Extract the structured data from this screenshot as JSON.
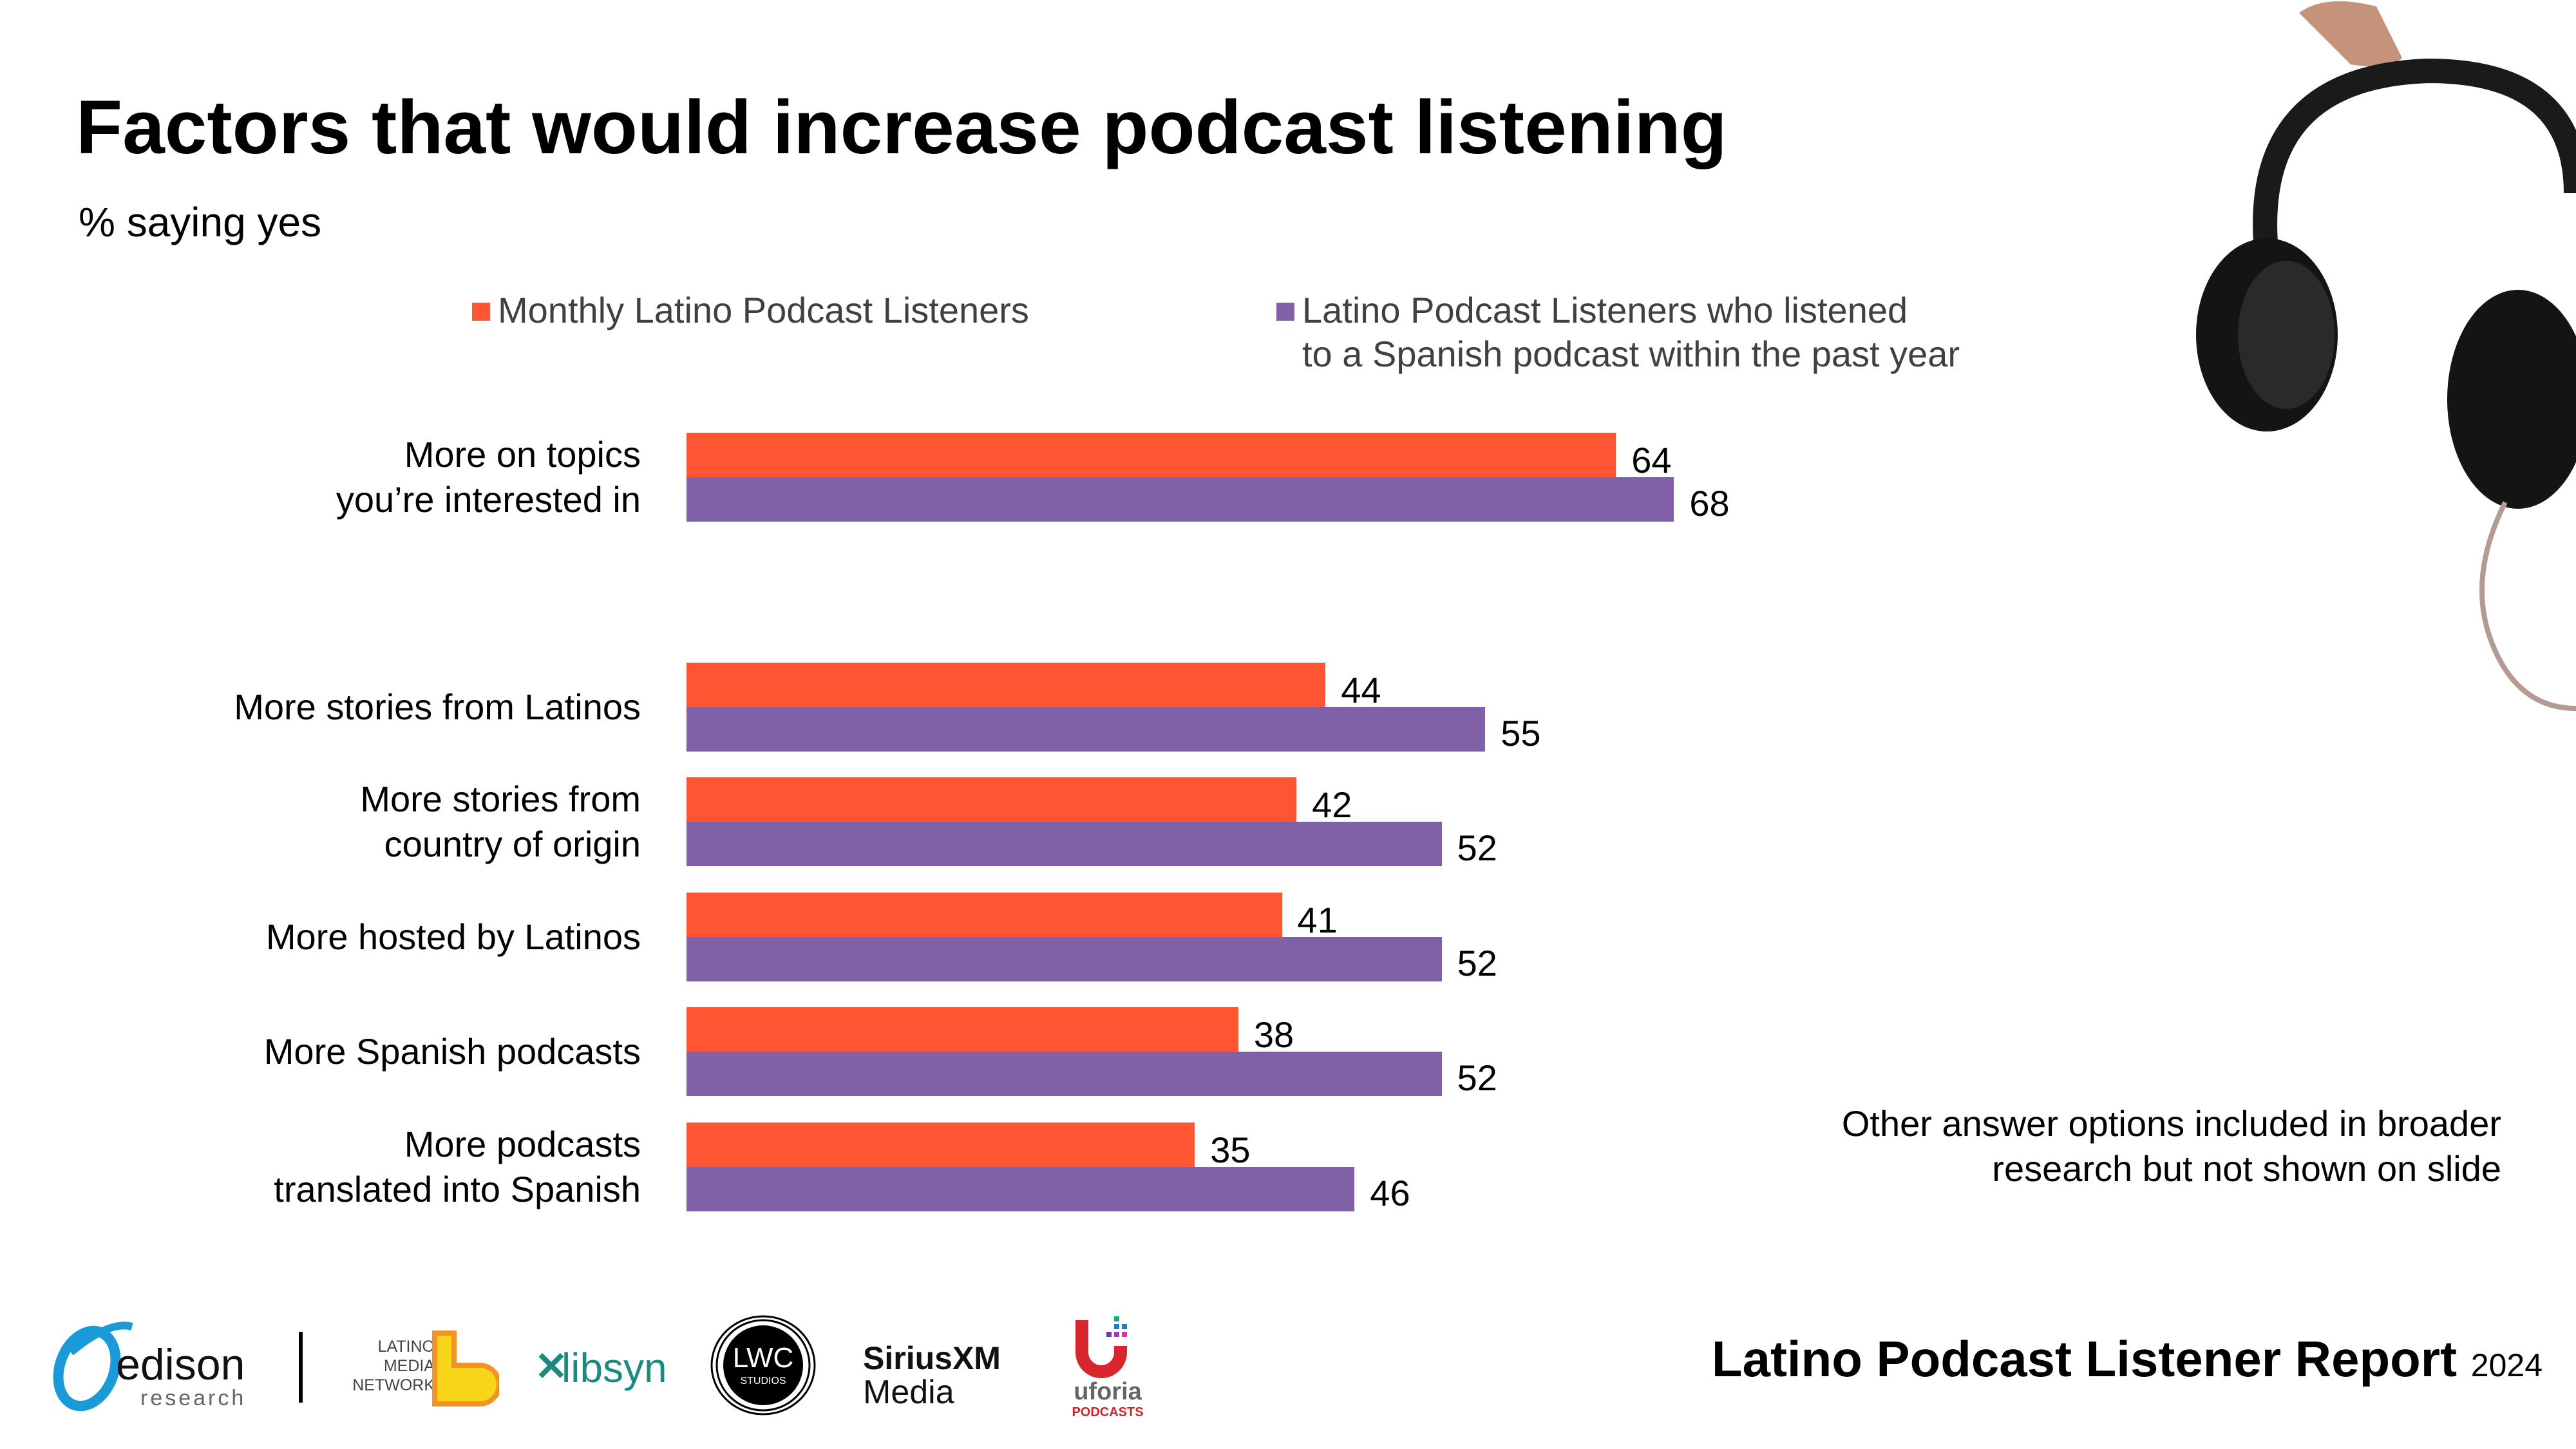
{
  "title": "Factors that would increase podcast listening",
  "subtitle": "% saying yes",
  "colors": {
    "series1": "#FF5533",
    "series2": "#8061A8"
  },
  "legend": [
    {
      "label_line1": "Monthly Latino Podcast Listeners",
      "label_line2": ""
    },
    {
      "label_line1": "Latino Podcast Listeners  who listened",
      "label_line2": "to a Spanish podcast within the past year"
    }
  ],
  "chart_data": {
    "type": "bar",
    "orientation": "horizontal",
    "title": "Factors that would increase podcast listening",
    "subtitle": "% saying yes",
    "xlabel": "",
    "ylabel": "",
    "grid": false,
    "legend_position": "top",
    "categories": [
      "More on topics you’re interested in",
      "More stories from Latinos",
      "More stories from country of origin",
      "More hosted by Latinos",
      "More Spanish podcasts",
      "More podcasts translated into Spanish"
    ],
    "category_lines": [
      [
        "More on topics",
        "you’re interested in"
      ],
      [
        "More stories from Latinos"
      ],
      [
        "More stories from",
        "country of origin"
      ],
      [
        "More hosted by Latinos"
      ],
      [
        "More Spanish podcasts"
      ],
      [
        "More podcasts",
        "translated into Spanish"
      ]
    ],
    "series": [
      {
        "name": "Monthly Latino Podcast Listeners",
        "values": [
          64,
          44,
          42,
          41,
          38,
          35
        ]
      },
      {
        "name": "Latino Podcast Listeners who listened to a Spanish podcast within the past year",
        "values": [
          68,
          55,
          52,
          52,
          52,
          46
        ]
      }
    ],
    "xlim": [
      0,
      100
    ]
  },
  "note": {
    "line1": "Other answer options included in broader",
    "line2": "research but not shown on slide"
  },
  "footer": {
    "report_title": "Latino Podcast Listener Report",
    "report_year": "2024",
    "logos": {
      "edison_main": "edison",
      "edison_sub": "research",
      "lmn_line1": "LATINO",
      "lmn_line2": "MEDIA",
      "lmn_line3": "NETWORK",
      "libsyn": "libsyn",
      "lwc_main": "LWC",
      "lwc_sub": "STUDIOS",
      "sirius_main": "SiriusXM",
      "sirius_sub": "Media",
      "uforia_main": "uforia",
      "uforia_sub": "PODCASTS"
    }
  }
}
